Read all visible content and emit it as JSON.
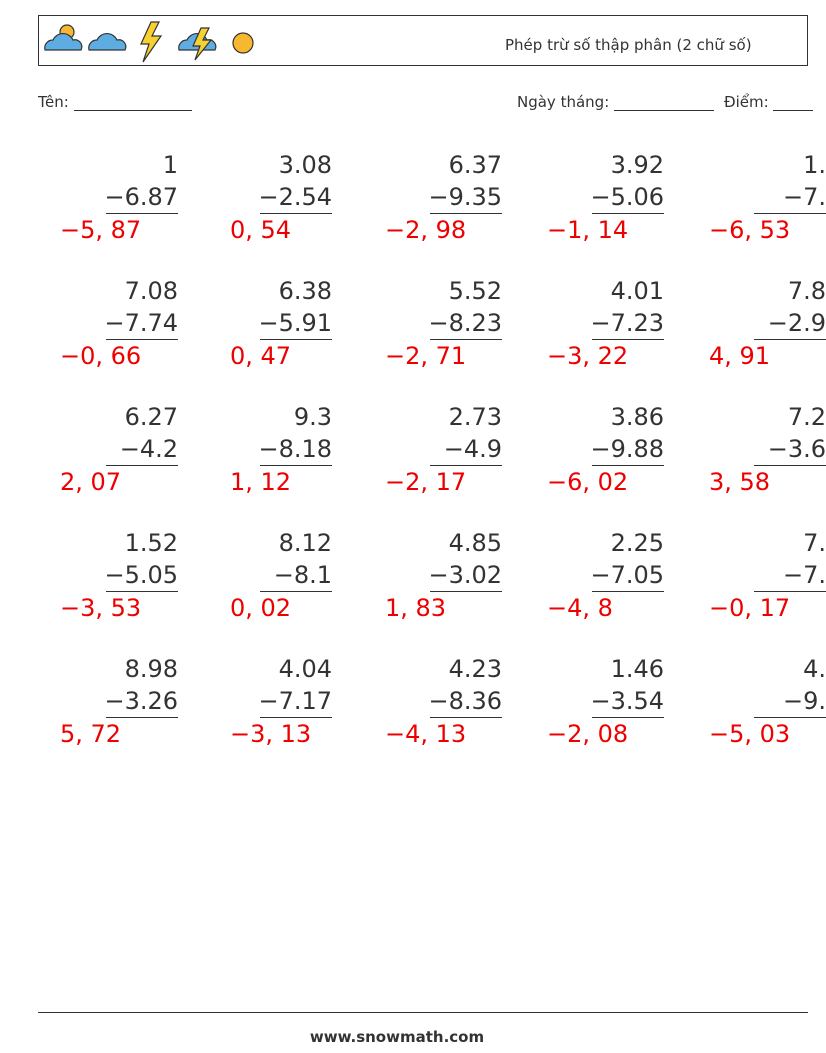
{
  "header": {
    "title": "Phép trừ số thập phân (2 chữ số)"
  },
  "fields": {
    "name": "Tên:",
    "date": "Ngày tháng:",
    "score": "Điểm:"
  },
  "problems": [
    [
      {
        "a": "1",
        "b": "−6.87",
        "answer": "−5, 87"
      },
      {
        "a": "3.08",
        "b": "−2.54",
        "answer": "0, 54"
      },
      {
        "a": "6.37",
        "b": "−9.35",
        "answer": "−2, 98"
      },
      {
        "a": "3.92",
        "b": "−5.06",
        "answer": "−1, 14"
      },
      {
        "a": "1.",
        "b": "−7.",
        "answer": "−6, 53"
      }
    ],
    [
      {
        "a": "7.08",
        "b": "−7.74",
        "answer": "−0, 66"
      },
      {
        "a": "6.38",
        "b": "−5.91",
        "answer": "0, 47"
      },
      {
        "a": "5.52",
        "b": "−8.23",
        "answer": "−2, 71"
      },
      {
        "a": "4.01",
        "b": "−7.23",
        "answer": "−3, 22"
      },
      {
        "a": "7.8",
        "b": "−2.9",
        "answer": "4, 91"
      }
    ],
    [
      {
        "a": "6.27",
        "b": "−4.2",
        "answer": "2, 07"
      },
      {
        "a": "9.3",
        "b": "−8.18",
        "answer": "1, 12"
      },
      {
        "a": "2.73",
        "b": "−4.9",
        "answer": "−2, 17"
      },
      {
        "a": "3.86",
        "b": "−9.88",
        "answer": "−6, 02"
      },
      {
        "a": "7.2",
        "b": "−3.6",
        "answer": "3, 58"
      }
    ],
    [
      {
        "a": "1.52",
        "b": "−5.05",
        "answer": "−3, 53"
      },
      {
        "a": "8.12",
        "b": "−8.1",
        "answer": "0, 02"
      },
      {
        "a": "4.85",
        "b": "−3.02",
        "answer": "1, 83"
      },
      {
        "a": "2.25",
        "b": "−7.05",
        "answer": "−4, 8"
      },
      {
        "a": "7.",
        "b": "−7.",
        "answer": "−0, 17"
      }
    ],
    [
      {
        "a": "8.98",
        "b": "−3.26",
        "answer": "5, 72"
      },
      {
        "a": "4.04",
        "b": "−7.17",
        "answer": "−3, 13"
      },
      {
        "a": "4.23",
        "b": "−8.36",
        "answer": "−4, 13"
      },
      {
        "a": "1.46",
        "b": "−3.54",
        "answer": "−2, 08"
      },
      {
        "a": "4.",
        "b": "−9.",
        "answer": "−5, 03"
      }
    ]
  ],
  "footer": {
    "url": "www.snowmath.com"
  }
}
